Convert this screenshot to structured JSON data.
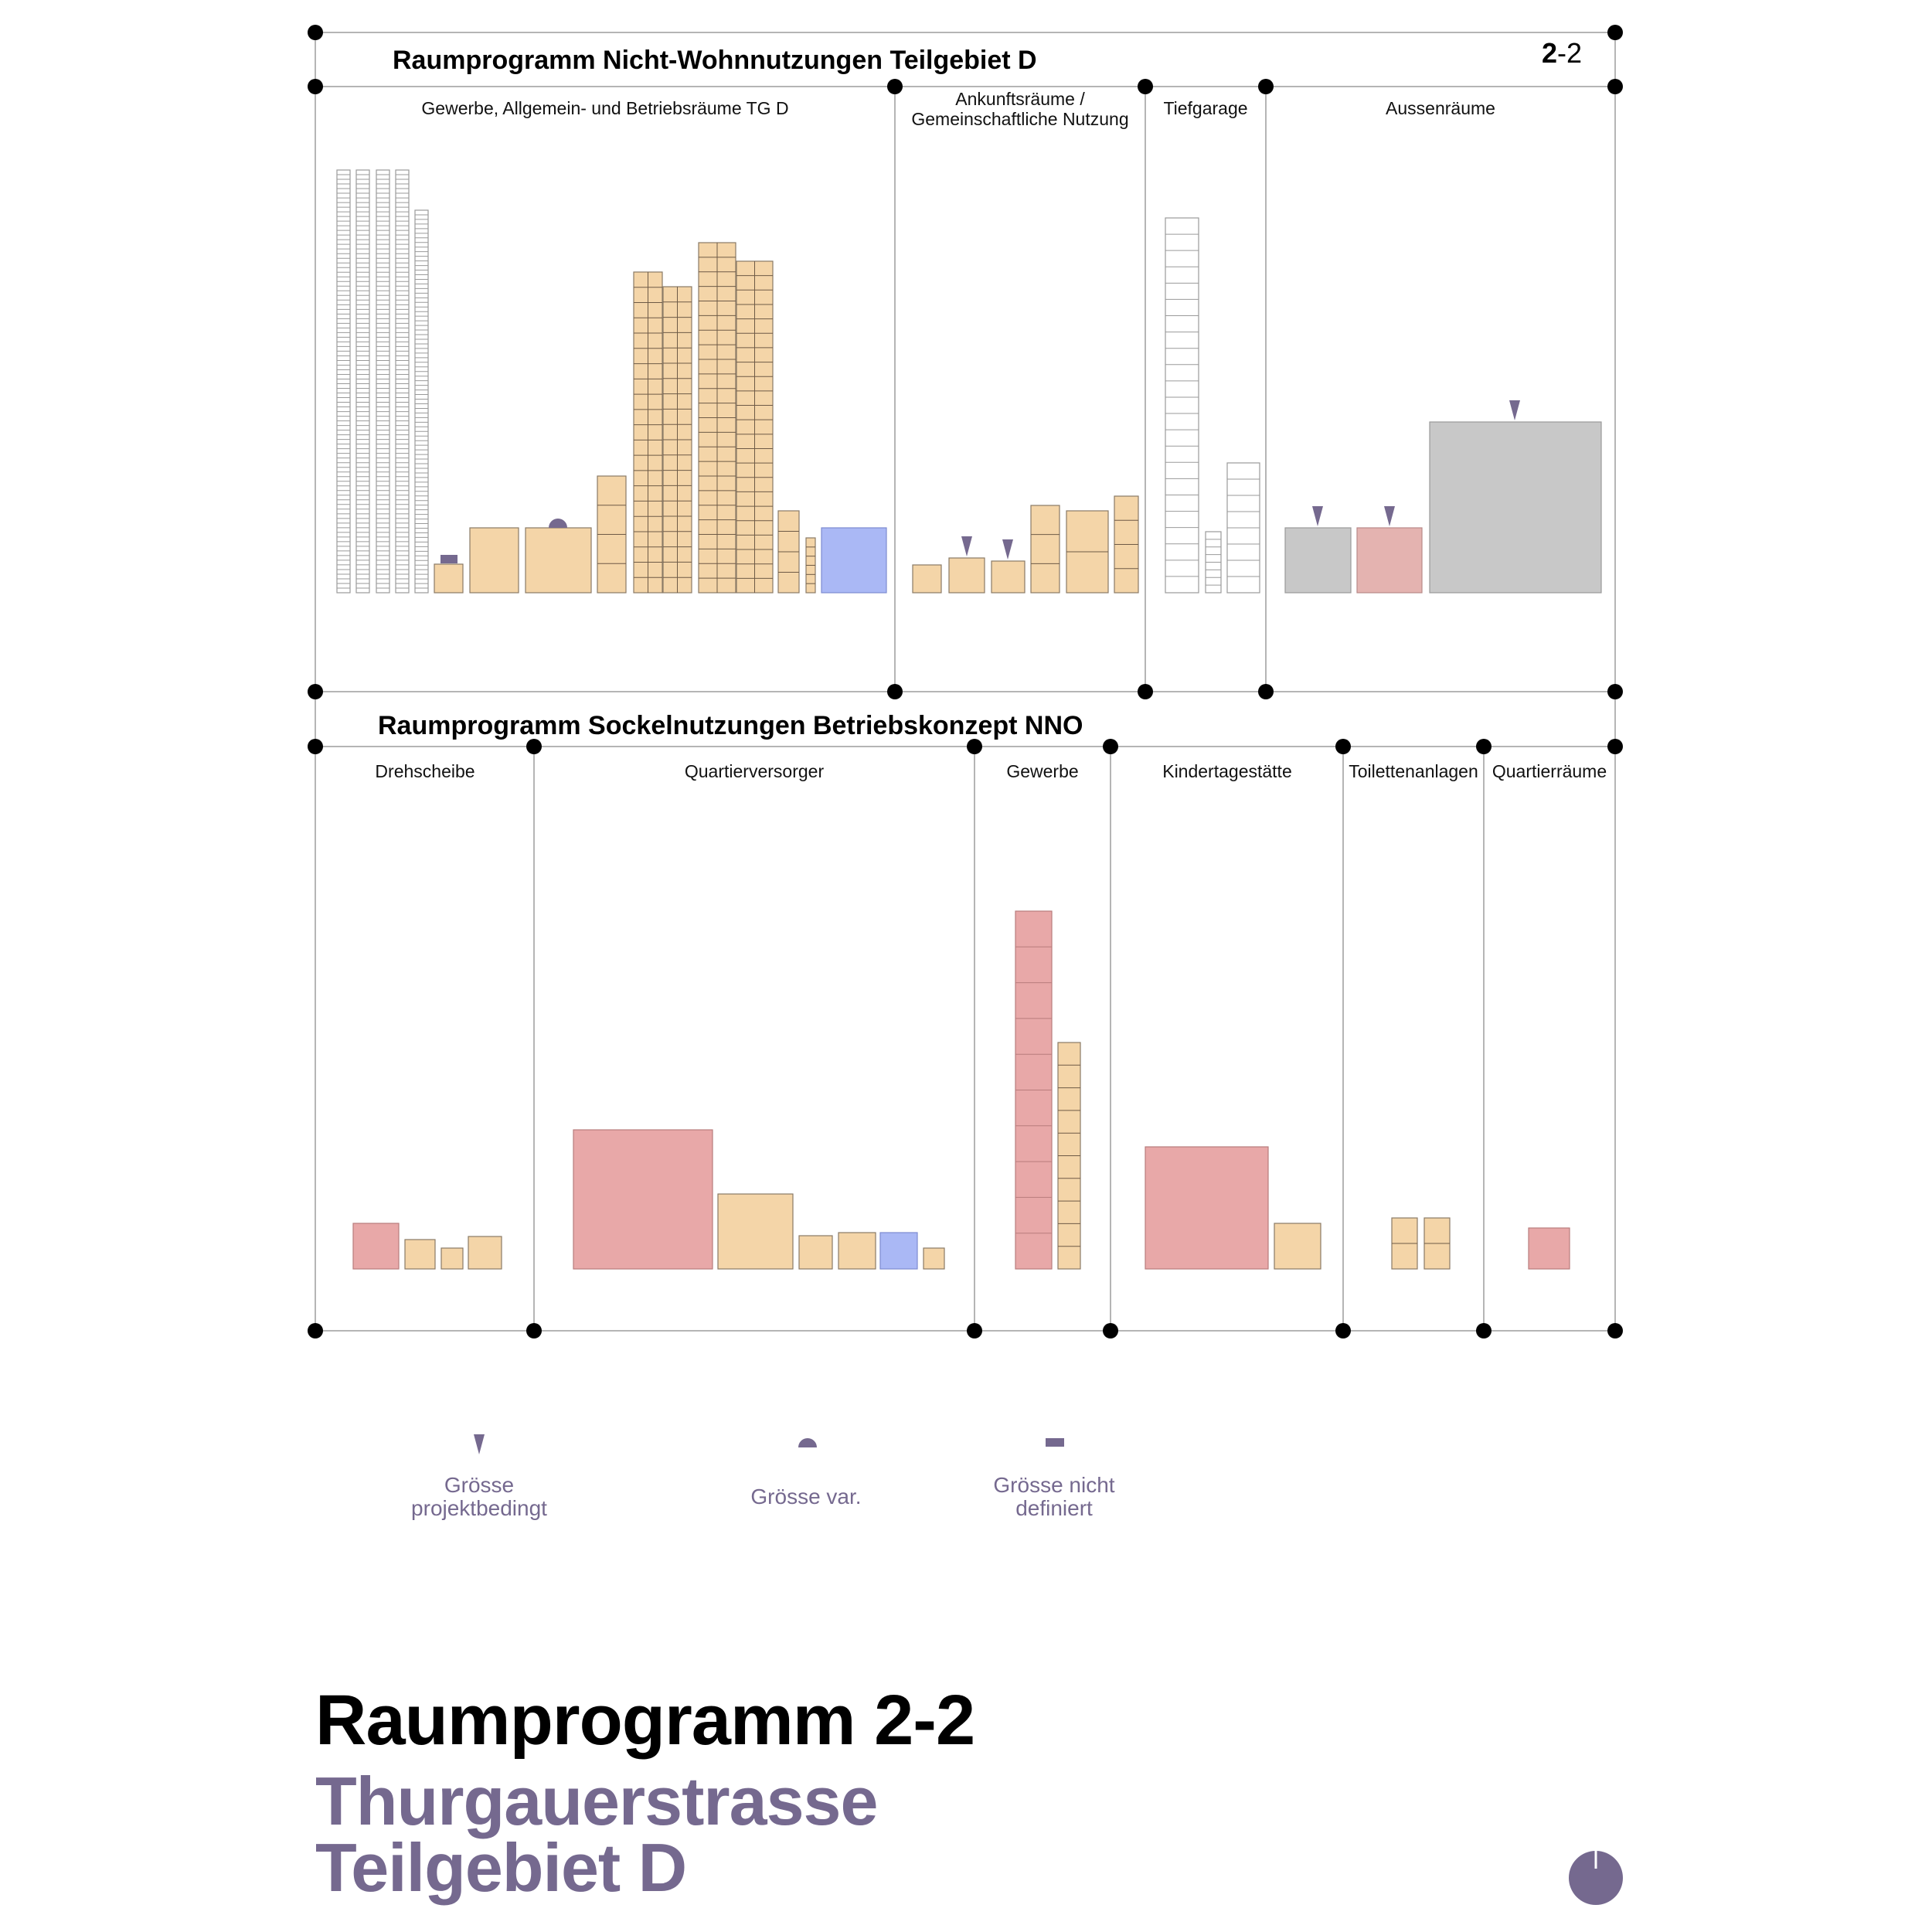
{
  "page_badge": {
    "bold": "2",
    "rest": "-2"
  },
  "top_panel": {
    "title": "Raumprogramm Nicht-Wohnnutzungen Teilgebiet D",
    "columns": [
      {
        "label_lines": [
          "Gewerbe, Allgemein- und Betriebsräume TG D"
        ]
      },
      {
        "label_lines": [
          "Ankunftsräume /",
          "Gemeinschaftliche Nutzung"
        ]
      },
      {
        "label_lines": [
          "Tiefgarage"
        ]
      },
      {
        "label_lines": [
          "Aussenräume"
        ]
      }
    ]
  },
  "bottom_panel": {
    "title": "Raumprogramm Sockelnutzungen Betriebskonzept NNO",
    "columns": [
      {
        "label_lines": [
          "Drehscheibe"
        ]
      },
      {
        "label_lines": [
          "Quartierversorger"
        ]
      },
      {
        "label_lines": [
          "Gewerbe"
        ]
      },
      {
        "label_lines": [
          "Kindertagestätte"
        ]
      },
      {
        "label_lines": [
          "Toilettenanlagen"
        ]
      },
      {
        "label_lines": [
          "Quartierräume"
        ]
      }
    ]
  },
  "legend": [
    {
      "symbol": "triangle",
      "label_lines": [
        "Grösse",
        "projektbedingt"
      ]
    },
    {
      "symbol": "semicircle",
      "label_lines": [
        "Grösse var."
      ]
    },
    {
      "symbol": "bar",
      "label_lines": [
        "Grösse nicht",
        "definiert"
      ]
    }
  ],
  "footer": {
    "title": "Raumprogramm 2-2",
    "subtitle_lines": [
      "Thurgauerstrasse",
      "Teilgebiet D"
    ]
  },
  "colors": {
    "accent": "#75698f",
    "tan": "#f4d5a8",
    "pink": "#e8a8a8",
    "rose": "#e4b3b0",
    "blue": "#aab8f5",
    "grey": "#c8c8c8",
    "line": "#b5b5b5",
    "cell_stroke": "#6e5a46"
  }
}
